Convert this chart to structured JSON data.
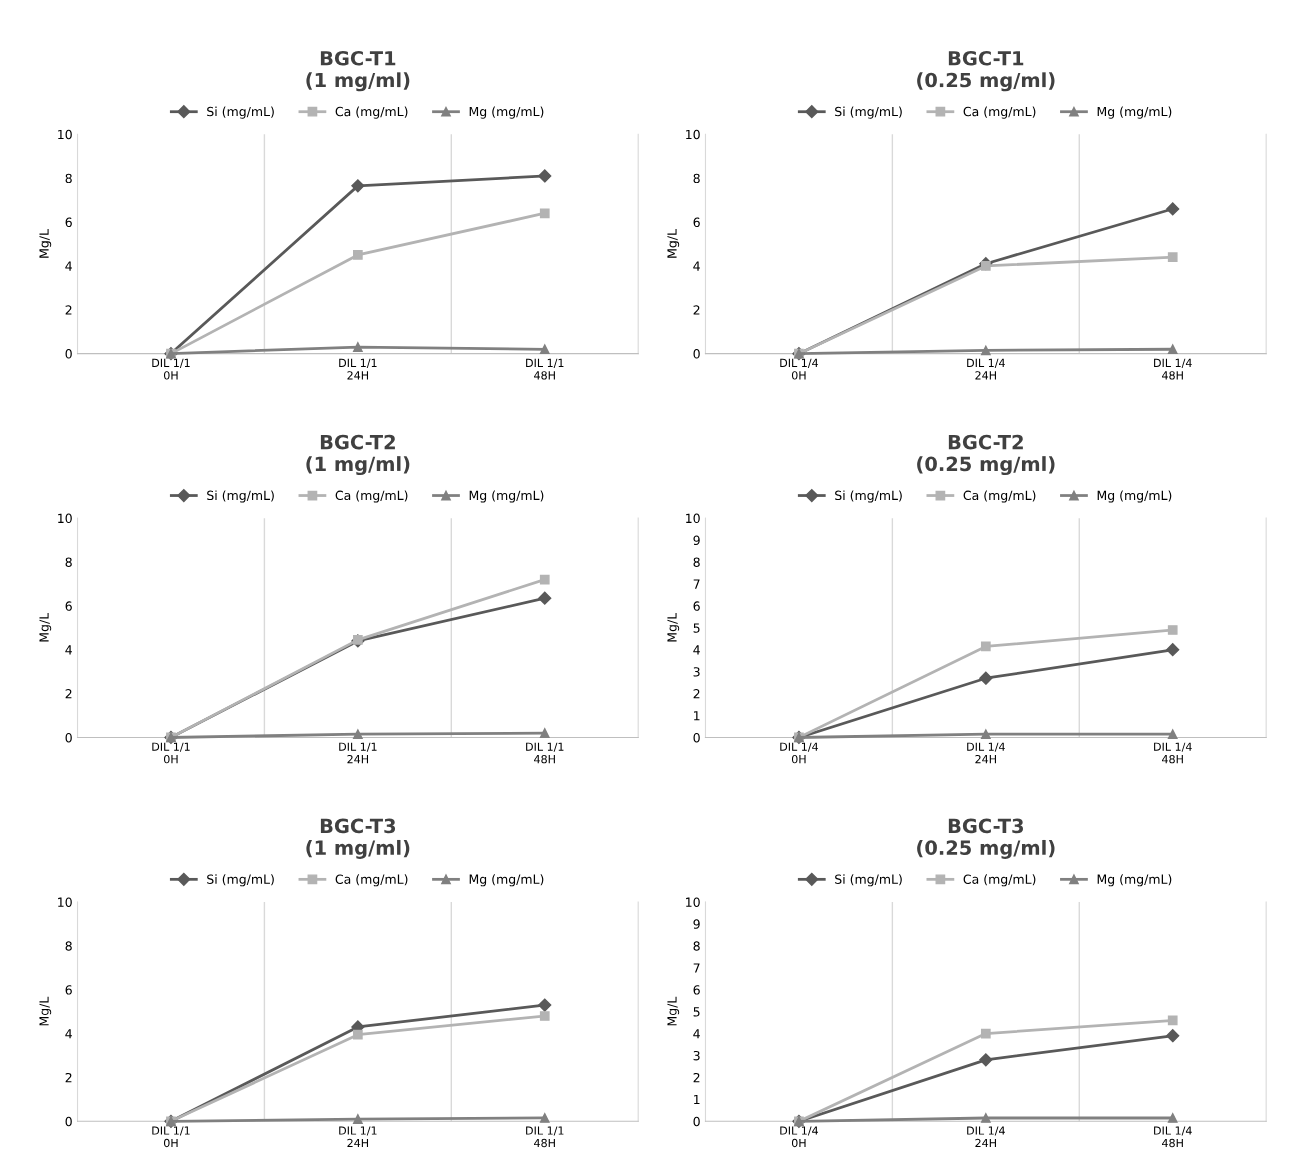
{
  "chart_data": [
    {
      "type": "line",
      "title": "BGC-T1\n(1 mg/ml)",
      "ylabel": "Mg/L",
      "categories": [
        "DIL 1/1\n0H",
        "DIL 1/1\n24H",
        "DIL 1/1\n48H"
      ],
      "ylim": [
        0,
        10
      ],
      "yticks": [
        0,
        2,
        4,
        6,
        8,
        10
      ],
      "grid": "x",
      "legend": "top",
      "series": [
        {
          "name": "Si (mg/mL)",
          "color": "#595959",
          "marker": "diamond",
          "values": [
            0,
            7.65,
            8.1
          ]
        },
        {
          "name": "Ca (mg/mL)",
          "color": "#b3b3b3",
          "marker": "square",
          "values": [
            0,
            4.5,
            6.4
          ]
        },
        {
          "name": "Mg (mg/mL)",
          "color": "#808080",
          "marker": "triangle",
          "values": [
            0,
            0.3,
            0.2
          ]
        }
      ]
    },
    {
      "type": "line",
      "title": "BGC-T1\n(0.25 mg/ml)",
      "ylabel": "Mg/L",
      "categories": [
        "DIL 1/4\n0H",
        "DIL 1/4\n24H",
        "DIL 1/4\n48H"
      ],
      "ylim": [
        0,
        10
      ],
      "yticks": [
        0,
        2,
        4,
        6,
        8,
        10
      ],
      "grid": "x",
      "legend": "top",
      "series": [
        {
          "name": "Si (mg/mL)",
          "color": "#595959",
          "marker": "diamond",
          "values": [
            0,
            4.1,
            6.6
          ]
        },
        {
          "name": "Ca (mg/mL)",
          "color": "#b3b3b3",
          "marker": "square",
          "values": [
            0,
            4.0,
            4.4
          ]
        },
        {
          "name": "Mg (mg/mL)",
          "color": "#808080",
          "marker": "triangle",
          "values": [
            0,
            0.15,
            0.2
          ]
        }
      ]
    },
    {
      "type": "line",
      "title": "BGC-T2\n(1 mg/ml)",
      "ylabel": "Mg/L",
      "categories": [
        "DIL 1/1\n0H",
        "DIL 1/1\n24H",
        "DIL 1/1\n48H"
      ],
      "ylim": [
        0,
        10
      ],
      "yticks": [
        0,
        2,
        4,
        6,
        8,
        10
      ],
      "grid": "x",
      "legend": "top",
      "series": [
        {
          "name": "Si (mg/mL)",
          "color": "#595959",
          "marker": "diamond",
          "values": [
            0,
            4.4,
            6.35
          ]
        },
        {
          "name": "Ca (mg/mL)",
          "color": "#b3b3b3",
          "marker": "square",
          "values": [
            0,
            4.45,
            7.2
          ]
        },
        {
          "name": "Mg (mg/mL)",
          "color": "#808080",
          "marker": "triangle",
          "values": [
            0,
            0.15,
            0.2
          ]
        }
      ]
    },
    {
      "type": "line",
      "title": "BGC-T2\n(0.25 mg/ml)",
      "ylabel": "Mg/L",
      "categories": [
        "DIL 1/4\n0H",
        "DIL 1/4\n24H",
        "DIL 1/4\n48H"
      ],
      "ylim": [
        0,
        10
      ],
      "yticks": [
        0,
        1,
        2,
        3,
        4,
        5,
        6,
        7,
        8,
        9,
        10
      ],
      "grid": "x",
      "legend": "top",
      "series": [
        {
          "name": "Si (mg/mL)",
          "color": "#595959",
          "marker": "diamond",
          "values": [
            0,
            2.7,
            4.0
          ]
        },
        {
          "name": "Ca (mg/mL)",
          "color": "#b3b3b3",
          "marker": "square",
          "values": [
            0,
            4.15,
            4.9
          ]
        },
        {
          "name": "Mg (mg/mL)",
          "color": "#808080",
          "marker": "triangle",
          "values": [
            0,
            0.15,
            0.15
          ]
        }
      ]
    },
    {
      "type": "line",
      "title": "BGC-T3\n(1 mg/ml)",
      "ylabel": "Mg/L",
      "categories": [
        "DIL 1/1\n0H",
        "DIL 1/1\n24H",
        "DIL 1/1\n48H"
      ],
      "ylim": [
        0,
        10
      ],
      "yticks": [
        0,
        2,
        4,
        6,
        8,
        10
      ],
      "grid": "x",
      "legend": "top",
      "series": [
        {
          "name": "Si (mg/mL)",
          "color": "#595959",
          "marker": "diamond",
          "values": [
            0,
            4.3,
            5.3
          ]
        },
        {
          "name": "Ca (mg/mL)",
          "color": "#b3b3b3",
          "marker": "square",
          "values": [
            0,
            3.95,
            4.8
          ]
        },
        {
          "name": "Mg (mg/mL)",
          "color": "#808080",
          "marker": "triangle",
          "values": [
            0,
            0.1,
            0.15
          ]
        }
      ]
    },
    {
      "type": "line",
      "title": "BGC-T3\n(0.25 mg/ml)",
      "ylabel": "Mg/L",
      "categories": [
        "DIL 1/4\n0H",
        "DIL 1/4\n24H",
        "DIL 1/4\n48H"
      ],
      "ylim": [
        0,
        10
      ],
      "yticks": [
        0,
        1,
        2,
        3,
        4,
        5,
        6,
        7,
        8,
        9,
        10
      ],
      "grid": "x",
      "legend": "top",
      "series": [
        {
          "name": "Si (mg/mL)",
          "color": "#595959",
          "marker": "diamond",
          "values": [
            0,
            2.8,
            3.9
          ]
        },
        {
          "name": "Ca (mg/mL)",
          "color": "#b3b3b3",
          "marker": "square",
          "values": [
            0,
            4.0,
            4.6
          ]
        },
        {
          "name": "Mg (mg/mL)",
          "color": "#808080",
          "marker": "triangle",
          "values": [
            0,
            0.15,
            0.15
          ]
        }
      ]
    }
  ]
}
